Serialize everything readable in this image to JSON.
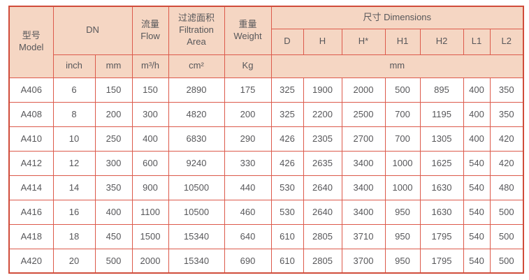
{
  "chart_data": {
    "type": "table",
    "title": "Filter model specification table",
    "colors": {
      "header_bg": "#f5d6c3",
      "grid": "#dc5a4b",
      "outer_border": "#d04c3b",
      "text": "#57575a"
    },
    "header": {
      "model_label": "型号\nModel",
      "dn_label": "DN",
      "flow_label": "流量\nFlow",
      "filtration_label": "过滤面积\nFiltration\nArea",
      "weight_label": "重量\nWeight",
      "dimensions_label": "尺寸 Dimensions",
      "dim_columns": [
        "D",
        "H",
        "H*",
        "H1",
        "H2",
        "L1",
        "L2"
      ],
      "units": {
        "dn_inch": "inch",
        "dn_mm": "mm",
        "flow": "m³/h",
        "filtration": "cm²",
        "weight": "Kg",
        "dimensions": "mm"
      }
    },
    "row_field_order": [
      "model",
      "dn_inch",
      "dn_mm",
      "flow",
      "filtration_area",
      "weight",
      "d",
      "h",
      "h_star",
      "h1",
      "h2",
      "l1",
      "l2"
    ],
    "rows": [
      {
        "model": "A406",
        "dn_inch": "6",
        "dn_mm": "150",
        "flow": "150",
        "filtration_area": "2890",
        "weight": "175",
        "d": "325",
        "h": "1900",
        "h_star": "2000",
        "h1": "500",
        "h2": "895",
        "l1": "400",
        "l2": "350"
      },
      {
        "model": "A408",
        "dn_inch": "8",
        "dn_mm": "200",
        "flow": "300",
        "filtration_area": "4820",
        "weight": "200",
        "d": "325",
        "h": "2200",
        "h_star": "2500",
        "h1": "700",
        "h2": "1195",
        "l1": "400",
        "l2": "350"
      },
      {
        "model": "A410",
        "dn_inch": "10",
        "dn_mm": "250",
        "flow": "400",
        "filtration_area": "6830",
        "weight": "290",
        "d": "426",
        "h": "2305",
        "h_star": "2700",
        "h1": "700",
        "h2": "1305",
        "l1": "400",
        "l2": "420"
      },
      {
        "model": "A412",
        "dn_inch": "12",
        "dn_mm": "300",
        "flow": "600",
        "filtration_area": "9240",
        "weight": "330",
        "d": "426",
        "h": "2635",
        "h_star": "3400",
        "h1": "1000",
        "h2": "1625",
        "l1": "540",
        "l2": "420"
      },
      {
        "model": "A414",
        "dn_inch": "14",
        "dn_mm": "350",
        "flow": "900",
        "filtration_area": "10500",
        "weight": "440",
        "d": "530",
        "h": "2640",
        "h_star": "3400",
        "h1": "1000",
        "h2": "1630",
        "l1": "540",
        "l2": "480"
      },
      {
        "model": "A416",
        "dn_inch": "16",
        "dn_mm": "400",
        "flow": "1100",
        "filtration_area": "10500",
        "weight": "460",
        "d": "530",
        "h": "2640",
        "h_star": "3400",
        "h1": "950",
        "h2": "1630",
        "l1": "540",
        "l2": "500"
      },
      {
        "model": "A418",
        "dn_inch": "18",
        "dn_mm": "450",
        "flow": "1500",
        "filtration_area": "15340",
        "weight": "640",
        "d": "610",
        "h": "2805",
        "h_star": "3710",
        "h1": "950",
        "h2": "1795",
        "l1": "540",
        "l2": "500"
      },
      {
        "model": "A420",
        "dn_inch": "20",
        "dn_mm": "500",
        "flow": "2000",
        "filtration_area": "15340",
        "weight": "690",
        "d": "610",
        "h": "2805",
        "h_star": "3700",
        "h1": "950",
        "h2": "1795",
        "l1": "540",
        "l2": "500"
      }
    ]
  }
}
